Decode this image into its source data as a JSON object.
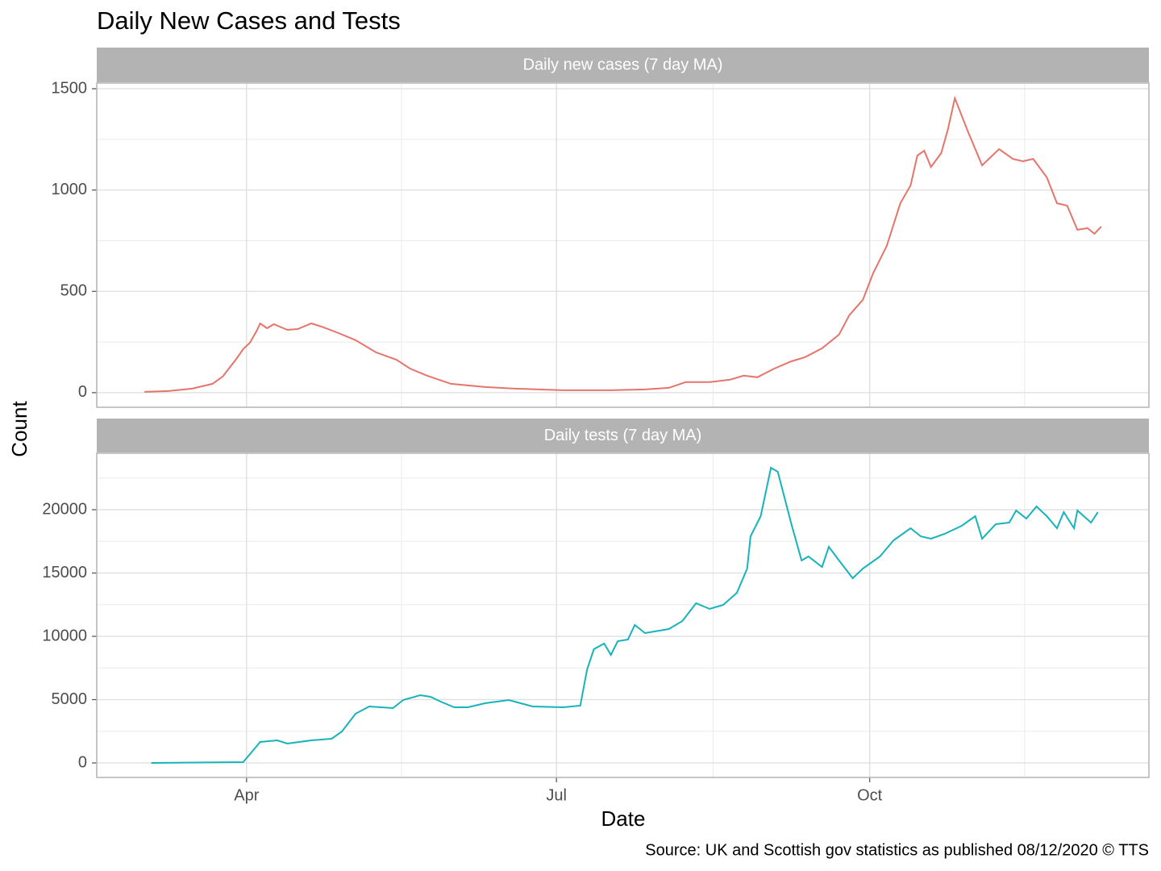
{
  "title": "Daily New Cases and Tests",
  "y_label": "Count",
  "source": "Source: UK and Scottish gov statistics as published 08/12/2020  © TTS",
  "x_axis": {
    "label": "Date",
    "xlim": [
      48,
      357
    ],
    "xticks": [
      {
        "value": 92,
        "label": "Apr"
      },
      {
        "value": 183,
        "label": "Jul"
      },
      {
        "value": 275,
        "label": "Oct"
      }
    ],
    "xminor": [
      137.5,
      229,
      320.5
    ]
  },
  "chart_data": [
    {
      "type": "line",
      "title": "Daily new cases (7 day MA)",
      "color": "#e5756a",
      "ylim": [
        -72,
        1528
      ],
      "yticks": [
        0,
        500,
        1000,
        1500
      ],
      "yminor": [
        250,
        750,
        1250
      ],
      "x": [
        62,
        69,
        76,
        82,
        85,
        89,
        91,
        93,
        95,
        96,
        98,
        100,
        104,
        107,
        111,
        114,
        119,
        124,
        130,
        136,
        140,
        145,
        152,
        162,
        171,
        185,
        199,
        209,
        216,
        221,
        228,
        234,
        238,
        242,
        247,
        252,
        256,
        261,
        266,
        269,
        273,
        276,
        280,
        284,
        287,
        289,
        291,
        293,
        296,
        298,
        300,
        304,
        308,
        313,
        317,
        320,
        323,
        327,
        330,
        333,
        336,
        339,
        341,
        343
      ],
      "values": [
        4,
        8,
        20,
        44,
        80,
        167,
        215,
        247,
        306,
        342,
        318,
        338,
        310,
        314,
        342,
        326,
        294,
        259,
        199,
        163,
        119,
        84,
        44,
        28,
        20,
        12,
        12,
        16,
        24,
        52,
        52,
        64,
        84,
        76,
        119,
        155,
        175,
        219,
        287,
        382,
        458,
        589,
        724,
        935,
        1023,
        1170,
        1194,
        1114,
        1182,
        1301,
        1453,
        1282,
        1122,
        1202,
        1154,
        1142,
        1154,
        1063,
        935,
        923,
        804,
        812,
        784,
        820
      ]
    },
    {
      "type": "line",
      "title": "Daily tests (7 day MA)",
      "color": "#17b3bb",
      "ylim": [
        -1146,
        24459
      ],
      "yticks": [
        0,
        5000,
        10000,
        15000,
        20000
      ],
      "yminor": [
        2500,
        7500,
        12500,
        17500,
        22500
      ],
      "x": [
        64,
        91,
        94,
        96,
        101,
        104,
        111,
        117,
        120,
        124,
        128,
        135,
        138,
        143,
        146,
        149,
        153,
        157,
        162,
        169,
        176,
        185,
        190,
        192,
        194,
        197,
        199,
        201,
        204,
        206,
        209,
        216,
        220,
        224,
        228,
        232,
        236,
        239,
        240,
        243,
        246,
        248,
        252,
        255,
        257,
        261,
        263,
        266,
        270,
        273,
        278,
        282,
        287,
        290,
        293,
        297,
        302,
        306,
        308,
        312,
        316,
        318,
        321,
        324,
        327,
        330,
        332,
        335,
        336,
        340,
        342
      ],
      "values": [
        0,
        64,
        1019,
        1656,
        1784,
        1529,
        1784,
        1911,
        2484,
        3886,
        4459,
        4332,
        4969,
        5351,
        5223,
        4841,
        4395,
        4395,
        4714,
        4969,
        4459,
        4395,
        4523,
        7389,
        8982,
        9428,
        8536,
        9619,
        9746,
        10893,
        10256,
        10574,
        11211,
        12613,
        12167,
        12485,
        13441,
        15352,
        17900,
        19492,
        23314,
        22996,
        18855,
        15989,
        16308,
        15479,
        17072,
        15989,
        14587,
        15352,
        16308,
        17581,
        18537,
        17900,
        17709,
        18091,
        18728,
        19492,
        17709,
        18855,
        18982,
        19938,
        19301,
        20257,
        19492,
        18537,
        19811,
        18537,
        19938,
        18982,
        19811
      ]
    }
  ]
}
